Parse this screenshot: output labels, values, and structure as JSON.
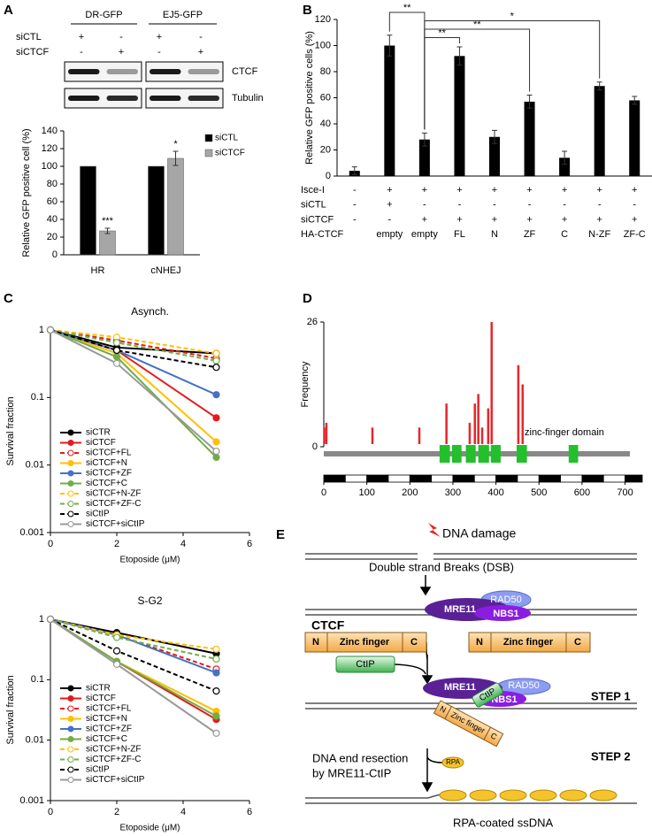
{
  "panel_labels": [
    "A",
    "B",
    "C",
    "D",
    "E"
  ],
  "blot": {
    "groups": [
      "DR-GFP",
      "EJ5-GFP"
    ],
    "rows": [
      {
        "label": "siCTL",
        "cells": [
          "+",
          "-",
          "+",
          "-"
        ]
      },
      {
        "label": "siCTCF",
        "cells": [
          "-",
          "+",
          "-",
          "+"
        ]
      }
    ],
    "bands": [
      "CTCF",
      "Tubulin"
    ]
  },
  "chart_data": [
    {
      "type": "bar",
      "ylabel": "Relative GFP positive cell (%)",
      "categories": [
        "HR",
        "cNHEJ"
      ],
      "series": [
        {
          "name": "siCTL",
          "color": "#000000",
          "values": [
            100,
            100
          ]
        },
        {
          "name": "siCTCF",
          "color": "#a6a6a6",
          "values": [
            27,
            109
          ],
          "errors": [
            3,
            8
          ],
          "significance": [
            "***",
            "*"
          ]
        }
      ],
      "ylim": [
        0,
        140
      ],
      "yticks": [
        0,
        20,
        40,
        60,
        80,
        100,
        120,
        140
      ],
      "legend": "upper right"
    },
    {
      "type": "bar",
      "ylabel": "Relative GFP positive cells (%)",
      "color": "#000000",
      "categories": [
        null,
        "empty",
        "empty",
        "FL",
        "N",
        "ZF",
        "C",
        "N-ZF",
        "ZF-C"
      ],
      "category_label": "HA-CTCF",
      "values": [
        4,
        100,
        28,
        92,
        30,
        57,
        14,
        69,
        58
      ],
      "errors": [
        3,
        8,
        5,
        7,
        5,
        5,
        5,
        3,
        3
      ],
      "ylim": [
        0,
        120
      ],
      "yticks": [
        0,
        20,
        40,
        60,
        80,
        100,
        120
      ],
      "brackets": [
        {
          "label": "**",
          "between": [
            1,
            2
          ]
        },
        {
          "label": "*",
          "between": [
            2,
            7
          ]
        },
        {
          "label": "**",
          "between": [
            2,
            5
          ]
        },
        {
          "label": "**",
          "between": [
            2,
            3
          ]
        }
      ],
      "table": [
        {
          "label": "Isce-I",
          "cells": [
            "-",
            "+",
            "+",
            "+",
            "+",
            "+",
            "+",
            "+",
            "+"
          ]
        },
        {
          "label": "siCTL",
          "cells": [
            "-",
            "+",
            "-",
            "-",
            "-",
            "-",
            "-",
            "-",
            "-"
          ]
        },
        {
          "label": "siCTCF",
          "cells": [
            "-",
            "-",
            "+",
            "+",
            "+",
            "+",
            "+",
            "+",
            "+"
          ]
        }
      ]
    },
    {
      "type": "line",
      "title": "Asynch.",
      "xlabel": "Etoposide (μM)",
      "ylabel": "Survival fraction",
      "log_y": true,
      "legend": "lower left",
      "x": [
        0,
        2,
        5
      ],
      "xlim": [
        0,
        6
      ],
      "xticks": [
        0,
        2,
        4,
        6
      ],
      "ylim": [
        0.001,
        1
      ],
      "yticks": [
        0.001,
        0.01,
        0.1,
        1
      ],
      "series": [
        {
          "name": "siCTR",
          "color": "#000000",
          "dashed": false,
          "marker": "filled",
          "values": [
            1,
            0.55,
            0.45
          ]
        },
        {
          "name": "siCTCF",
          "color": "#e31a1c",
          "dashed": false,
          "marker": "filled",
          "values": [
            1,
            0.5,
            0.05
          ]
        },
        {
          "name": "siCTCF+FL",
          "color": "#e31a1c",
          "dashed": true,
          "marker": "open",
          "values": [
            1,
            0.7,
            0.38
          ]
        },
        {
          "name": "siCTCF+N",
          "color": "#ffc000",
          "dashed": false,
          "marker": "filled",
          "values": [
            1,
            0.45,
            0.022
          ]
        },
        {
          "name": "siCTCF+ZF",
          "color": "#4472c4",
          "dashed": false,
          "marker": "filled",
          "values": [
            1,
            0.5,
            0.11
          ]
        },
        {
          "name": "siCTCF+C",
          "color": "#70ad47",
          "dashed": false,
          "marker": "filled",
          "values": [
            1,
            0.4,
            0.013
          ]
        },
        {
          "name": "siCTCF+N-ZF",
          "color": "#ffc000",
          "dashed": true,
          "marker": "open",
          "values": [
            1,
            0.78,
            0.45
          ]
        },
        {
          "name": "siCTCF+ZF-C",
          "color": "#70ad47",
          "dashed": true,
          "marker": "open",
          "values": [
            1,
            0.65,
            0.35
          ]
        },
        {
          "name": "siCtIP",
          "color": "#000000",
          "dashed": true,
          "marker": "open",
          "values": [
            1,
            0.5,
            0.28
          ]
        },
        {
          "name": "siCTCF+siCtIP",
          "color": "#999999",
          "dashed": false,
          "marker": "open",
          "values": [
            1,
            0.32,
            0.016
          ]
        }
      ]
    },
    {
      "type": "line",
      "title": "S-G2",
      "xlabel": "Etoposide (μM)",
      "ylabel": "Survival fraction",
      "log_y": true,
      "legend": "lower left",
      "x": [
        0,
        2,
        5
      ],
      "xlim": [
        0,
        6
      ],
      "xticks": [
        0,
        2,
        4,
        6
      ],
      "ylim": [
        0.001,
        1
      ],
      "yticks": [
        0.001,
        0.01,
        0.1,
        1
      ],
      "series": [
        {
          "name": "siCTR",
          "color": "#000000",
          "dashed": false,
          "marker": "filled",
          "values": [
            1,
            0.6,
            0.27
          ]
        },
        {
          "name": "siCTCF",
          "color": "#e31a1c",
          "dashed": false,
          "marker": "filled",
          "values": [
            1,
            0.2,
            0.022
          ]
        },
        {
          "name": "siCTCF+FL",
          "color": "#e31a1c",
          "dashed": true,
          "marker": "open",
          "values": [
            1,
            0.55,
            0.15
          ]
        },
        {
          "name": "siCTCF+N",
          "color": "#ffc000",
          "dashed": false,
          "marker": "filled",
          "values": [
            1,
            0.2,
            0.03
          ]
        },
        {
          "name": "siCTCF+ZF",
          "color": "#4472c4",
          "dashed": false,
          "marker": "filled",
          "values": [
            1,
            0.55,
            0.13
          ]
        },
        {
          "name": "siCTCF+C",
          "color": "#70ad47",
          "dashed": false,
          "marker": "filled",
          "values": [
            1,
            0.2,
            0.025
          ]
        },
        {
          "name": "siCTCF+N-ZF",
          "color": "#ffc000",
          "dashed": true,
          "marker": "open",
          "values": [
            1,
            0.55,
            0.32
          ]
        },
        {
          "name": "siCTCF+ZF-C",
          "color": "#70ad47",
          "dashed": true,
          "marker": "open",
          "values": [
            1,
            0.5,
            0.22
          ]
        },
        {
          "name": "siCtIP",
          "color": "#000000",
          "dashed": true,
          "marker": "open",
          "values": [
            1,
            0.3,
            0.065
          ]
        },
        {
          "name": "siCTCF+siCtIP",
          "color": "#999999",
          "dashed": false,
          "marker": "open",
          "values": [
            1,
            0.18,
            0.013
          ]
        }
      ]
    },
    {
      "type": "stem",
      "ylabel": "Frequency",
      "color": "#e8262a",
      "x": [
        1,
        6,
        113,
        222,
        285,
        339,
        351,
        359,
        368,
        382,
        390,
        452,
        462
      ],
      "values": [
        4,
        5,
        4,
        4,
        9,
        5,
        9,
        11,
        4,
        8,
        26,
        17,
        13
      ],
      "xlim": [
        0,
        740
      ],
      "xticks": [
        0,
        100,
        200,
        300,
        400,
        500,
        600,
        700
      ],
      "ylim": [
        0,
        26
      ],
      "yticks": [
        0,
        26
      ],
      "domain_label": "zinc-finger domain",
      "domain_color": "#22c02a",
      "domains": [
        [
          269,
          293
        ],
        [
          298,
          320
        ],
        [
          330,
          353
        ],
        [
          359,
          384
        ],
        [
          388,
          411
        ],
        [
          448,
          472
        ],
        [
          569,
          591
        ]
      ]
    }
  ],
  "diagram": {
    "damage": "DNA damage",
    "dsb": "Double strand Breaks (DSB)",
    "mre11": "MRE11",
    "rad50": "RAD50",
    "nbs1": "NBS1",
    "ctcf": "CTCF",
    "ctcf_parts": [
      "N",
      "Zinc finger",
      "C"
    ],
    "ctip": "CtIP",
    "step1": "STEP 1",
    "resection": [
      "DNA end resection",
      "by MRE11-CtIP"
    ],
    "rpa": "RPA",
    "step2": "STEP 2",
    "ssdna": "RPA-coated ssDNA"
  }
}
